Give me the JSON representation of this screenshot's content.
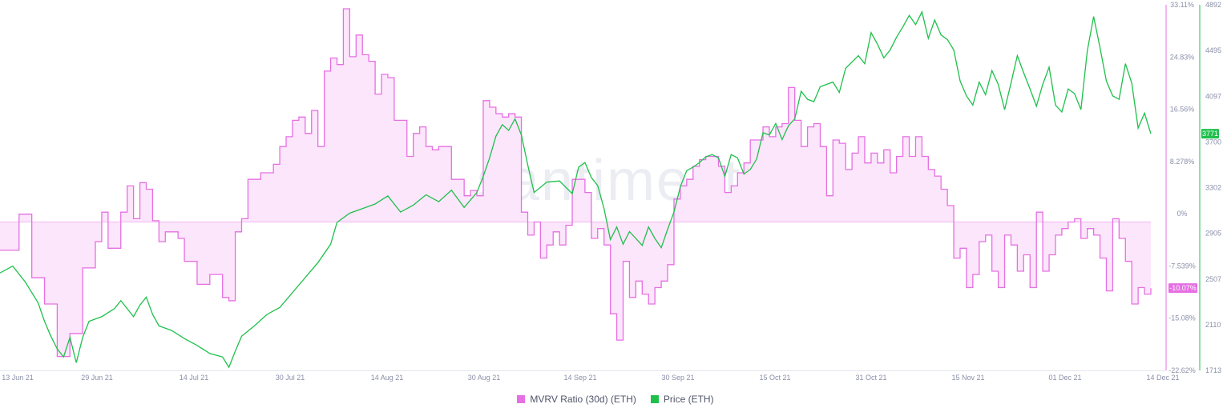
{
  "chart_data": {
    "type": "line",
    "watermark": "santiment",
    "x_ticks": [
      "13 Jun 21",
      "29 Jun 21",
      "14 Jul 21",
      "30 Jul 21",
      "14 Aug 21",
      "30 Aug 21",
      "14 Sep 21",
      "30 Sep 21",
      "15 Oct 21",
      "31 Oct 21",
      "15 Nov 21",
      "01 Dec 21",
      "14 Dec 21"
    ],
    "left_axis": {
      "ticks": [
        "33.11%",
        "24.83%",
        "16.56%",
        "8.278%",
        "0%",
        "-7.539%",
        "-15.08%",
        "-22.62%"
      ],
      "ylim": [
        -22.62,
        33.11
      ]
    },
    "right_axis": {
      "ticks": [
        "4892",
        "4495",
        "4097",
        "3700",
        "3302",
        "2905",
        "2507",
        "2110",
        "1713"
      ],
      "ylim": [
        1713,
        4892
      ]
    },
    "series": [
      {
        "name": "MVRV Ratio (30d) (ETH)",
        "color": "#e66fe3",
        "fill": "#fce6fb",
        "axis": "left",
        "last_value": "-10.07%",
        "points": [
          [
            0,
            -4.3
          ],
          [
            3,
            1.2
          ],
          [
            5,
            -8.5
          ],
          [
            7,
            -12.5
          ],
          [
            9,
            -20.5
          ],
          [
            11,
            -17.0
          ],
          [
            13,
            -7.0
          ],
          [
            15,
            -3.0
          ],
          [
            16,
            1.5
          ],
          [
            17,
            -4.0
          ],
          [
            19,
            1.5
          ],
          [
            20,
            5.5
          ],
          [
            21,
            0.5
          ],
          [
            22,
            6.0
          ],
          [
            23,
            5.0
          ],
          [
            24,
            0.2
          ],
          [
            25,
            -3.0
          ],
          [
            26,
            -1.5
          ],
          [
            28,
            -2.5
          ],
          [
            29,
            -6.0
          ],
          [
            31,
            -9.5
          ],
          [
            33,
            -8.0
          ],
          [
            35,
            -11.5
          ],
          [
            36,
            -12.0
          ],
          [
            37,
            -1.5
          ],
          [
            38,
            0.5
          ],
          [
            39,
            6.5
          ],
          [
            41,
            7.5
          ],
          [
            43,
            8.8
          ],
          [
            44,
            11.5
          ],
          [
            45,
            13.0
          ],
          [
            46,
            15.5
          ],
          [
            47,
            16.0
          ],
          [
            48,
            13.5
          ],
          [
            49,
            17.0
          ],
          [
            50,
            11.5
          ],
          [
            51,
            23.0
          ],
          [
            52,
            25.0
          ],
          [
            53,
            24.0
          ],
          [
            54,
            32.5
          ],
          [
            55,
            25.2
          ],
          [
            56,
            28.5
          ],
          [
            57,
            25.5
          ],
          [
            58,
            24.5
          ],
          [
            59,
            19.5
          ],
          [
            60,
            22.5
          ],
          [
            61,
            22.0
          ],
          [
            62,
            15.5
          ],
          [
            64,
            10.0
          ],
          [
            65,
            13.5
          ],
          [
            66,
            14.5
          ],
          [
            67,
            11.5
          ],
          [
            68,
            11.0
          ],
          [
            69,
            11.5
          ],
          [
            71,
            6.5
          ],
          [
            73,
            4.0
          ],
          [
            74,
            4.8
          ],
          [
            75,
            4.0
          ],
          [
            76,
            18.5
          ],
          [
            77,
            17.5
          ],
          [
            78,
            16.5
          ],
          [
            79,
            16.0
          ],
          [
            80,
            16.5
          ],
          [
            81,
            16.0
          ],
          [
            82,
            1.5
          ],
          [
            83,
            -2.0
          ],
          [
            84,
            0.0
          ],
          [
            85,
            -5.5
          ],
          [
            86,
            -3.5
          ],
          [
            87,
            -1.5
          ],
          [
            88,
            -3.5
          ],
          [
            89,
            -0.5
          ],
          [
            90,
            6.5
          ],
          [
            92,
            4.5
          ],
          [
            93,
            -2.5
          ],
          [
            94,
            -1.0
          ],
          [
            95,
            -3.5
          ],
          [
            96,
            -14.0
          ],
          [
            97,
            -18.0
          ],
          [
            98,
            -6.0
          ],
          [
            99,
            -11.5
          ],
          [
            100,
            -9.0
          ],
          [
            101,
            -11.0
          ],
          [
            102,
            -12.5
          ],
          [
            103,
            -10.0
          ],
          [
            104,
            -9.0
          ],
          [
            105,
            -6.5
          ],
          [
            106,
            3.5
          ],
          [
            107,
            5.5
          ],
          [
            108,
            6.5
          ],
          [
            109,
            8.5
          ],
          [
            110,
            9.5
          ],
          [
            111,
            10.0
          ],
          [
            113,
            8.5
          ],
          [
            114,
            4.5
          ],
          [
            115,
            5.5
          ],
          [
            116,
            7.5
          ],
          [
            117,
            9.0
          ],
          [
            118,
            12.5
          ],
          [
            120,
            14.5
          ],
          [
            121,
            13.0
          ],
          [
            122,
            14.5
          ],
          [
            123,
            15.0
          ],
          [
            124,
            20.5
          ],
          [
            125,
            15.5
          ],
          [
            126,
            11.5
          ],
          [
            127,
            14.5
          ],
          [
            128,
            15.0
          ],
          [
            129,
            11.5
          ],
          [
            130,
            4.0
          ],
          [
            131,
            12.5
          ],
          [
            132,
            12.0
          ],
          [
            133,
            8.0
          ],
          [
            134,
            10.5
          ],
          [
            135,
            13.0
          ],
          [
            136,
            9.0
          ],
          [
            137,
            10.5
          ],
          [
            138,
            9.0
          ],
          [
            139,
            11.0
          ],
          [
            140,
            7.5
          ],
          [
            141,
            10.0
          ],
          [
            142,
            13.0
          ],
          [
            143,
            10.0
          ],
          [
            144,
            13.0
          ],
          [
            145,
            10.0
          ],
          [
            146,
            8.0
          ],
          [
            147,
            7.0
          ],
          [
            148,
            5.0
          ],
          [
            149,
            2.5
          ],
          [
            150,
            -5.5
          ],
          [
            151,
            -4.0
          ],
          [
            152,
            -10.0
          ],
          [
            153,
            -8.0
          ],
          [
            154,
            -3.0
          ],
          [
            155,
            -2.0
          ],
          [
            156,
            -7.5
          ],
          [
            157,
            -10.0
          ],
          [
            158,
            -2.0
          ],
          [
            159,
            -3.5
          ],
          [
            160,
            -7.5
          ],
          [
            161,
            -5.0
          ],
          [
            162,
            -10.0
          ],
          [
            163,
            1.5
          ],
          [
            164,
            -7.5
          ],
          [
            165,
            -5.0
          ],
          [
            166,
            -2.0
          ],
          [
            167,
            -1.0
          ],
          [
            168,
            0.0
          ],
          [
            169,
            0.5
          ],
          [
            170,
            -2.5
          ],
          [
            171,
            -1.0
          ],
          [
            172,
            -2.0
          ],
          [
            173,
            -5.5
          ],
          [
            174,
            -10.5
          ],
          [
            175,
            0.5
          ],
          [
            176,
            -2.5
          ],
          [
            177,
            -6.0
          ],
          [
            178,
            -12.5
          ],
          [
            179,
            -10.0
          ],
          [
            180,
            -11.0
          ],
          [
            181,
            -10.07
          ]
        ]
      },
      {
        "name": "Price (ETH)",
        "color": "#1ec04b",
        "axis": "right",
        "last_value": "3771",
        "points": [
          [
            0,
            2560
          ],
          [
            2,
            2620
          ],
          [
            4,
            2480
          ],
          [
            6,
            2300
          ],
          [
            7,
            2140
          ],
          [
            8,
            2010
          ],
          [
            9,
            1900
          ],
          [
            10,
            1830
          ],
          [
            11,
            2000
          ],
          [
            12,
            1780
          ],
          [
            13,
            2000
          ],
          [
            14,
            2140
          ],
          [
            16,
            2180
          ],
          [
            18,
            2250
          ],
          [
            19,
            2320
          ],
          [
            21,
            2180
          ],
          [
            22,
            2280
          ],
          [
            23,
            2350
          ],
          [
            24,
            2200
          ],
          [
            25,
            2100
          ],
          [
            27,
            2060
          ],
          [
            29,
            1990
          ],
          [
            31,
            1930
          ],
          [
            33,
            1860
          ],
          [
            35,
            1830
          ],
          [
            36,
            1740
          ],
          [
            37,
            1880
          ],
          [
            38,
            2010
          ],
          [
            40,
            2100
          ],
          [
            42,
            2200
          ],
          [
            44,
            2260
          ],
          [
            46,
            2390
          ],
          [
            48,
            2520
          ],
          [
            50,
            2650
          ],
          [
            52,
            2810
          ],
          [
            53,
            3000
          ],
          [
            55,
            3080
          ],
          [
            57,
            3120
          ],
          [
            59,
            3160
          ],
          [
            61,
            3230
          ],
          [
            63,
            3090
          ],
          [
            65,
            3150
          ],
          [
            67,
            3240
          ],
          [
            69,
            3180
          ],
          [
            71,
            3280
          ],
          [
            73,
            3130
          ],
          [
            75,
            3260
          ],
          [
            76,
            3400
          ],
          [
            77,
            3560
          ],
          [
            78,
            3750
          ],
          [
            79,
            3850
          ],
          [
            80,
            3800
          ],
          [
            81,
            3900
          ],
          [
            82,
            3760
          ],
          [
            83,
            3500
          ],
          [
            84,
            3260
          ],
          [
            86,
            3350
          ],
          [
            88,
            3360
          ],
          [
            90,
            3250
          ],
          [
            91,
            3480
          ],
          [
            92,
            3520
          ],
          [
            93,
            3390
          ],
          [
            94,
            3320
          ],
          [
            95,
            3120
          ],
          [
            96,
            2850
          ],
          [
            97,
            2960
          ],
          [
            98,
            2810
          ],
          [
            99,
            2920
          ],
          [
            101,
            2800
          ],
          [
            102,
            2960
          ],
          [
            103,
            2860
          ],
          [
            104,
            2780
          ],
          [
            105,
            2940
          ],
          [
            106,
            3090
          ],
          [
            107,
            3310
          ],
          [
            108,
            3450
          ],
          [
            109,
            3480
          ],
          [
            110,
            3520
          ],
          [
            111,
            3570
          ],
          [
            112,
            3590
          ],
          [
            113,
            3560
          ],
          [
            114,
            3400
          ],
          [
            115,
            3590
          ],
          [
            116,
            3560
          ],
          [
            117,
            3420
          ],
          [
            118,
            3460
          ],
          [
            119,
            3550
          ],
          [
            120,
            3780
          ],
          [
            121,
            3760
          ],
          [
            122,
            3860
          ],
          [
            123,
            3720
          ],
          [
            124,
            3840
          ],
          [
            125,
            3900
          ],
          [
            126,
            4140
          ],
          [
            127,
            4070
          ],
          [
            128,
            4050
          ],
          [
            129,
            4180
          ],
          [
            131,
            4220
          ],
          [
            132,
            4130
          ],
          [
            133,
            4340
          ],
          [
            135,
            4450
          ],
          [
            136,
            4380
          ],
          [
            137,
            4650
          ],
          [
            138,
            4550
          ],
          [
            139,
            4430
          ],
          [
            140,
            4500
          ],
          [
            141,
            4610
          ],
          [
            142,
            4700
          ],
          [
            143,
            4800
          ],
          [
            144,
            4720
          ],
          [
            145,
            4830
          ],
          [
            146,
            4600
          ],
          [
            147,
            4760
          ],
          [
            148,
            4630
          ],
          [
            149,
            4590
          ],
          [
            150,
            4500
          ],
          [
            151,
            4230
          ],
          [
            152,
            4100
          ],
          [
            153,
            4020
          ],
          [
            154,
            4220
          ],
          [
            155,
            4110
          ],
          [
            156,
            4320
          ],
          [
            157,
            4200
          ],
          [
            158,
            3980
          ],
          [
            159,
            4210
          ],
          [
            160,
            4450
          ],
          [
            161,
            4300
          ],
          [
            162,
            4160
          ],
          [
            163,
            4010
          ],
          [
            164,
            4200
          ],
          [
            165,
            4350
          ],
          [
            166,
            4020
          ],
          [
            167,
            3960
          ],
          [
            168,
            4160
          ],
          [
            169,
            4120
          ],
          [
            170,
            3980
          ],
          [
            171,
            4490
          ],
          [
            172,
            4790
          ],
          [
            173,
            4520
          ],
          [
            174,
            4230
          ],
          [
            175,
            4100
          ],
          [
            176,
            4070
          ],
          [
            177,
            4380
          ],
          [
            178,
            4210
          ],
          [
            179,
            3820
          ],
          [
            180,
            3950
          ],
          [
            181,
            3771
          ]
        ]
      }
    ],
    "x_max": 181
  },
  "legend": [
    {
      "label": "MVRV Ratio (30d) (ETH)",
      "color": "#e66fe3"
    },
    {
      "label": "Price (ETH)",
      "color": "#1ec04b"
    }
  ]
}
